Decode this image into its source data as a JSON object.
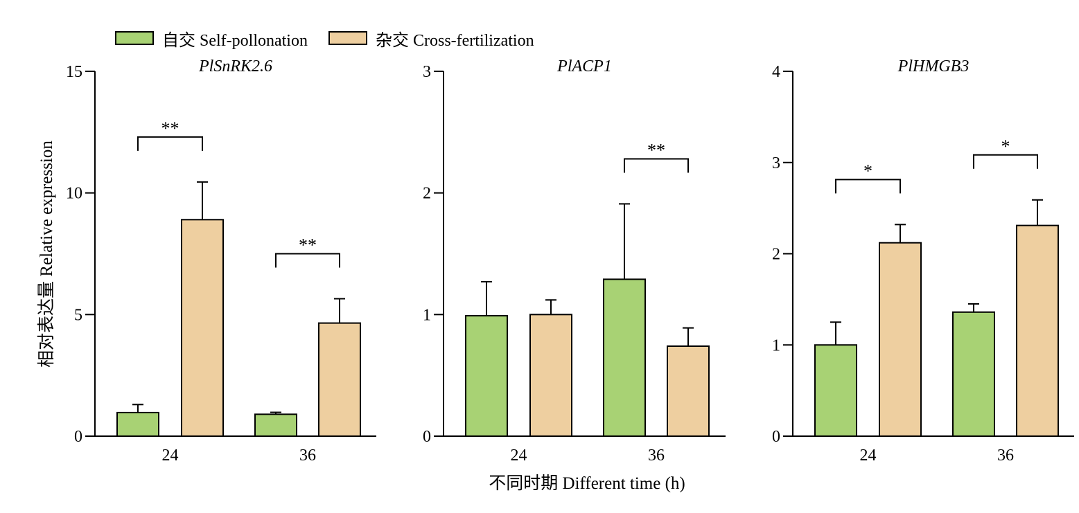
{
  "legend": {
    "self": "自交 Self-pollonation",
    "cross": "杂交 Cross-fertilization"
  },
  "colors": {
    "self": "#a8d274",
    "cross": "#eecfa0"
  },
  "ylabel": "相对表达量 Relative expression",
  "xlabel": "不同时期 Different time (h)",
  "chart_data": [
    {
      "type": "bar",
      "title": "PlSnRK2.6",
      "categories": [
        "24",
        "36"
      ],
      "series": [
        {
          "name": "自交 Self-pollonation",
          "values": [
            0.97,
            0.9
          ],
          "errors": [
            0.33,
            0.08
          ]
        },
        {
          "name": "杂交 Cross-fertilization",
          "values": [
            8.9,
            4.65
          ],
          "errors": [
            1.55,
            1.0
          ]
        }
      ],
      "significance": [
        "**",
        "**"
      ],
      "ylim": [
        0,
        15
      ],
      "yticks": [
        0,
        5,
        10,
        15
      ]
    },
    {
      "type": "bar",
      "title": "PlACP1",
      "categories": [
        "24",
        "36"
      ],
      "series": [
        {
          "name": "自交 Self-pollonation",
          "values": [
            0.99,
            1.29
          ],
          "errors": [
            0.28,
            0.62
          ]
        },
        {
          "name": "杂交 Cross-fertilization",
          "values": [
            1.0,
            0.74
          ],
          "errors": [
            0.12,
            0.15
          ]
        }
      ],
      "significance": [
        "",
        "**"
      ],
      "ylim": [
        0,
        3
      ],
      "yticks": [
        0,
        1,
        2,
        3
      ]
    },
    {
      "type": "bar",
      "title": "PlHMGB3",
      "categories": [
        "24",
        "36"
      ],
      "series": [
        {
          "name": "自交 Self-pollonation",
          "values": [
            1.0,
            1.36
          ],
          "errors": [
            0.25,
            0.09
          ]
        },
        {
          "name": "杂交 Cross-fertilization",
          "values": [
            2.12,
            2.31
          ],
          "errors": [
            0.2,
            0.28
          ]
        }
      ],
      "significance": [
        "*",
        "*"
      ],
      "ylim": [
        0,
        4
      ],
      "yticks": [
        0,
        1,
        2,
        3,
        4
      ]
    }
  ]
}
